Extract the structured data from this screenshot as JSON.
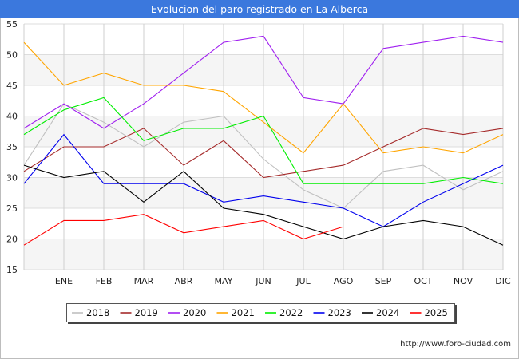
{
  "page": {
    "title": "Evolucion del paro registrado en La Alberca",
    "footer": "http://www.foro-ciudad.com"
  },
  "chart_data": {
    "type": "line",
    "title": "Evolucion del paro registrado en La Alberca",
    "xlabel": "",
    "ylabel": "",
    "categories": [
      "",
      "ENE",
      "FEB",
      "MAR",
      "ABR",
      "MAY",
      "JUN",
      "JUL",
      "AGO",
      "SEP",
      "OCT",
      "NOV",
      "DIC"
    ],
    "ylim": [
      15,
      55
    ],
    "yticks": [
      15,
      20,
      25,
      30,
      35,
      40,
      45,
      50,
      55
    ],
    "grid": true,
    "legend_position": "bottom",
    "series": [
      {
        "name": "2018",
        "color": "#c0c0c0",
        "values": [
          32,
          42,
          39,
          35,
          39,
          40,
          33,
          28,
          25,
          31,
          32,
          28,
          31
        ]
      },
      {
        "name": "2019",
        "color": "#a52a2a",
        "values": [
          31,
          35,
          35,
          38,
          32,
          36,
          30,
          31,
          32,
          35,
          38,
          37,
          38
        ]
      },
      {
        "name": "2020",
        "color": "#a020f0",
        "values": [
          38,
          42,
          38,
          42,
          47,
          52,
          53,
          43,
          42,
          51,
          52,
          53,
          52
        ]
      },
      {
        "name": "2021",
        "color": "#ffa500",
        "values": [
          52,
          45,
          47,
          45,
          45,
          44,
          39,
          34,
          42,
          34,
          35,
          34,
          37
        ]
      },
      {
        "name": "2022",
        "color": "#00ee00",
        "values": [
          37,
          41,
          43,
          36,
          38,
          38,
          40,
          29,
          29,
          29,
          29,
          30,
          29
        ]
      },
      {
        "name": "2023",
        "color": "#0000ee",
        "values": [
          29,
          37,
          29,
          29,
          29,
          26,
          27,
          26,
          25,
          22,
          26,
          29,
          32
        ]
      },
      {
        "name": "2024",
        "color": "#000000",
        "values": [
          32,
          30,
          31,
          26,
          31,
          25,
          24,
          22,
          20,
          22,
          23,
          22,
          19
        ]
      },
      {
        "name": "2025",
        "color": "#ff0000",
        "values": [
          19,
          23,
          23,
          24,
          21,
          22,
          23,
          20,
          22,
          null,
          null,
          null,
          null
        ]
      }
    ]
  }
}
